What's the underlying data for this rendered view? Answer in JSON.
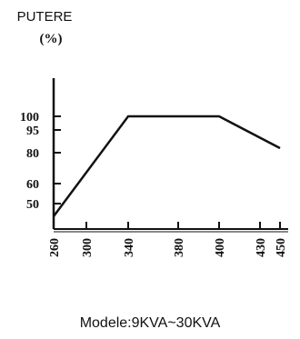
{
  "chart_data": {
    "type": "line",
    "ylabel": "PUTERE",
    "yunit": "(%)",
    "xlabel": "",
    "x_ticks": [
      260,
      300,
      340,
      380,
      400,
      430,
      450
    ],
    "y_ticks": [
      50,
      60,
      80,
      95,
      100
    ],
    "xlim": [
      260,
      450
    ],
    "series": [
      {
        "x": [
          260,
          340,
          400,
          450
        ],
        "y": [
          37,
          100,
          100,
          83
        ]
      }
    ],
    "caption": "Modele:9KVA~30KVA"
  }
}
